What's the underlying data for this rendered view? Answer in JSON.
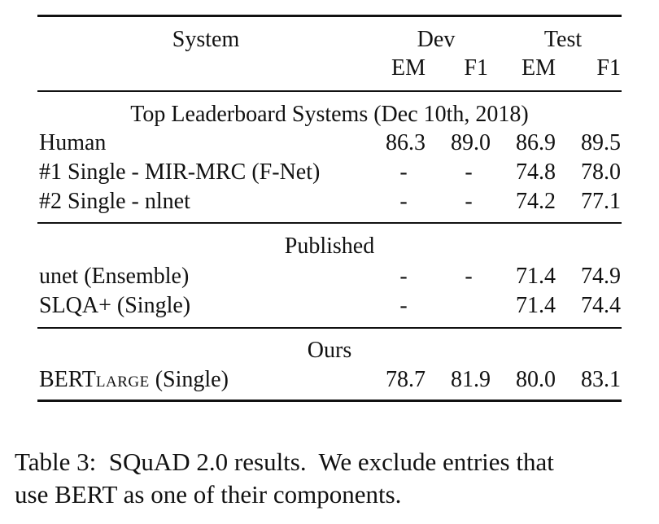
{
  "table": {
    "header": {
      "system": "System",
      "dev": "Dev",
      "test": "Test",
      "dev_em": "EM",
      "dev_f1": "F1",
      "test_em": "EM",
      "test_f1": "F1"
    },
    "sections": [
      {
        "title": "Top Leaderboard Systems (Dec 10th, 2018)",
        "rows": [
          {
            "system": "Human",
            "dev_em": "86.3",
            "dev_f1": "89.0",
            "test_em": "86.9",
            "test_f1": "89.5"
          },
          {
            "system": "#1 Single - MIR-MRC (F-Net)",
            "dev_em": "-",
            "dev_f1": "-",
            "test_em": "74.8",
            "test_f1": "78.0"
          },
          {
            "system": "#2 Single - nlnet",
            "dev_em": "-",
            "dev_f1": "-",
            "test_em": "74.2",
            "test_f1": "77.1"
          }
        ]
      },
      {
        "title": "Published",
        "rows": [
          {
            "system": "unet (Ensemble)",
            "dev_em": "-",
            "dev_f1": "-",
            "test_em": "71.4",
            "test_f1": "74.9"
          },
          {
            "system": "SLQA+ (Single)",
            "dev_em": "-",
            "dev_f1": "",
            "test_em": "71.4",
            "test_f1": "74.4"
          }
        ]
      },
      {
        "title": "Ours",
        "rows": [
          {
            "system_main": "BERT",
            "system_sub": "LARGE",
            "system_rest": " (Single)",
            "dev_em": "78.7",
            "dev_f1": "81.9",
            "test_em": "80.0",
            "test_f1": "83.1"
          }
        ]
      }
    ]
  },
  "caption": {
    "line1": "Table 3:  SQuAD 2.0 results.  We exclude entries that",
    "line2": "use BERT as one of their components."
  }
}
